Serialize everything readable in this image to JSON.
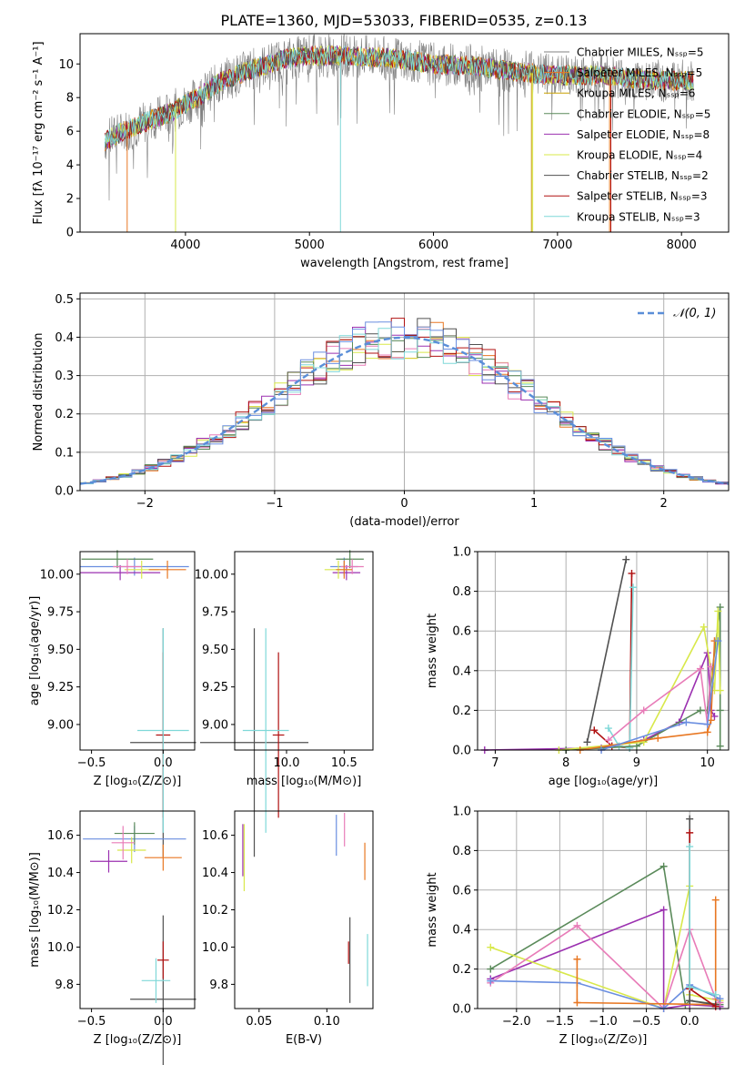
{
  "figure_title": "PLATE=1360, MJD=53033, FIBERID=0535, z=0.13",
  "colors": {
    "Chabrier MILES": "#808080",
    "Salpeter MILES": "#e87722",
    "Kroupa MILES": "#c8a000",
    "Chabrier ELODIE": "#5a8a5a",
    "Salpeter ELODIE": "#9b30b0",
    "Kroupa ELODIE": "#d8e84a",
    "Chabrier STELIB": "#505050",
    "Salpeter STELIB": "#b01010",
    "Kroupa STELIB": "#7fd8d8",
    "pink": "#e87cb8",
    "blue": "#6a8ee0",
    "normal_curve": "#5a8ed8",
    "grid": "#b0b0b0"
  },
  "chart_data": [
    {
      "id": "spectrum",
      "type": "line",
      "title": "PLATE=1360, MJD=53033, FIBERID=0535, z=0.13",
      "xlabel": "wavelength [Angstrom, rest frame]",
      "ylabel": "Flux [fλ 10⁻¹⁷ erg cm⁻² s⁻¹ A⁻¹]",
      "xlim": [
        3150,
        8380
      ],
      "ylim": [
        0,
        11.8
      ],
      "xticks": [
        "4000",
        "5000",
        "6000",
        "7000",
        "8000"
      ],
      "yticks": [
        "0",
        "2",
        "4",
        "6",
        "8",
        "10"
      ],
      "grid": false,
      "legend": "right",
      "series": [
        {
          "name": "Chabrier MILES, Nₛₛₚ=5"
        },
        {
          "name": "Salpeter MILES, Nₛₛₚ=5"
        },
        {
          "name": "Kroupa MILES, Nₛₛₚ=6"
        },
        {
          "name": "Chabrier ELODIE, Nₛₛₚ=5"
        },
        {
          "name": "Salpeter ELODIE, Nₛₛₚ=8"
        },
        {
          "name": "Kroupa ELODIE, Nₛₛₚ=4"
        },
        {
          "name": "Chabrier STELIB, Nₛₛₚ=2"
        },
        {
          "name": "Salpeter STELIB, Nₛₛₚ=3"
        },
        {
          "name": "Kroupa STELIB, Nₛₛₚ=3"
        }
      ],
      "continuum": {
        "x": [
          3350,
          3500,
          3700,
          3900,
          4100,
          4300,
          4500,
          4800,
          5000,
          5300,
          5600,
          6000,
          6300,
          6600,
          7000,
          7400,
          7800,
          8100
        ],
        "y": [
          5.4,
          6.0,
          6.6,
          7.2,
          8.0,
          9.0,
          9.6,
          10.3,
          10.5,
          10.5,
          10.4,
          10.0,
          9.9,
          9.6,
          9.3,
          9.3,
          9.0,
          9.0
        ]
      }
    },
    {
      "id": "residuals",
      "type": "histogram",
      "xlabel": "(data-model)/error",
      "ylabel": "Normed distribution",
      "xlim": [
        -2.5,
        2.5
      ],
      "ylim": [
        0,
        0.515
      ],
      "xticks": [
        "−2",
        "−1",
        "0",
        "1",
        "2"
      ],
      "yticks": [
        "0.0",
        "0.1",
        "0.2",
        "0.3",
        "0.4",
        "0.5"
      ],
      "grid": true,
      "legend": "top-right",
      "curve_label": "𝒩(0, 1)"
    },
    {
      "id": "age-vs-Z",
      "type": "scatter",
      "xlabel": "Z [log₁₀(Z/Z⊙)]",
      "ylabel": "age  [log₁₀(age/yr)]",
      "xlim": [
        -0.58,
        0.22
      ],
      "ylim": [
        8.83,
        10.15
      ],
      "xticks": [
        "−0.5",
        "0.0"
      ],
      "yticks": [
        "9.00",
        "9.25",
        "9.50",
        "9.75",
        "10.00"
      ],
      "points": [
        {
          "x": -0.2,
          "y": 10.05,
          "xerr": 0.38,
          "yerr": 0.06,
          "color": "blue"
        },
        {
          "x": -0.32,
          "y": 10.1,
          "xerr": 0.25,
          "yerr": 0.06,
          "color": "Chabrier ELODIE"
        },
        {
          "x": -0.3,
          "y": 10.01,
          "xerr": 0.28,
          "yerr": 0.05,
          "color": "Salpeter ELODIE"
        },
        {
          "x": -0.15,
          "y": 10.03,
          "xerr": 0.12,
          "yerr": 0.06,
          "color": "Kroupa ELODIE"
        },
        {
          "x": -0.25,
          "y": 10.05,
          "xerr": 0.1,
          "yerr": 0.05,
          "color": "pink"
        },
        {
          "x": 0.03,
          "y": 10.03,
          "xerr": 0.13,
          "yerr": 0.06,
          "color": "Salpeter MILES"
        },
        {
          "x": 0.0,
          "y": 8.88,
          "xerr": 0.23,
          "yerr": 0.76,
          "color": "Chabrier STELIB"
        },
        {
          "x": 0.0,
          "y": 8.93,
          "xerr": 0.05,
          "yerr": 0.55,
          "color": "Salpeter STELIB"
        },
        {
          "x": 0.0,
          "y": 8.96,
          "xerr": 0.18,
          "yerr": 0.68,
          "color": "Kroupa STELIB"
        }
      ]
    },
    {
      "id": "age-vs-mass",
      "type": "scatter",
      "xlabel": "mass [log₁₀(M/M⊙)]",
      "ylabel": "",
      "xlim": [
        9.55,
        10.75
      ],
      "ylim": [
        8.83,
        10.15
      ],
      "xticks": [
        "10.0",
        "10.5"
      ],
      "yticks": [
        "9.00",
        "9.25",
        "9.50",
        "9.75",
        "10.00"
      ],
      "points": [
        {
          "x": 10.5,
          "y": 10.05,
          "xerr": 0.12,
          "yerr": 0.06,
          "color": "blue"
        },
        {
          "x": 10.55,
          "y": 10.1,
          "xerr": 0.12,
          "yerr": 0.06,
          "color": "Chabrier ELODIE"
        },
        {
          "x": 10.52,
          "y": 10.01,
          "xerr": 0.12,
          "yerr": 0.05,
          "color": "Salpeter ELODIE"
        },
        {
          "x": 10.45,
          "y": 10.03,
          "xerr": 0.12,
          "yerr": 0.06,
          "color": "Kroupa ELODIE"
        },
        {
          "x": 10.57,
          "y": 10.05,
          "xerr": 0.1,
          "yerr": 0.05,
          "color": "pink"
        },
        {
          "x": 10.5,
          "y": 10.03,
          "xerr": 0.07,
          "yerr": 0.06,
          "color": "Salpeter MILES"
        },
        {
          "x": 9.72,
          "y": 8.88,
          "xerr": 0.47,
          "yerr": 0.76,
          "color": "Chabrier STELIB"
        },
        {
          "x": 9.93,
          "y": 8.93,
          "xerr": 0.05,
          "yerr": 0.55,
          "color": "Salpeter STELIB"
        },
        {
          "x": 9.82,
          "y": 8.96,
          "xerr": 0.2,
          "yerr": 0.68,
          "color": "Kroupa STELIB"
        }
      ]
    },
    {
      "id": "weight-vs-age",
      "type": "line",
      "xlabel": "age  [log₁₀(age/yr)]",
      "ylabel": "mass weight",
      "xlim": [
        6.75,
        10.3
      ],
      "ylim": [
        0,
        1.0
      ],
      "xticks": [
        "7",
        "8",
        "9",
        "10"
      ],
      "yticks": [
        "0.0",
        "0.2",
        "0.4",
        "0.6",
        "0.8",
        "1.0"
      ],
      "grid": true,
      "series": [
        {
          "color": "Chabrier STELIB",
          "x": [
            8.3,
            8.85
          ],
          "y": [
            0.04,
            0.96
          ]
        },
        {
          "color": "Salpeter STELIB",
          "x": [
            8.4,
            8.65,
            8.9,
            8.93
          ],
          "y": [
            0.1,
            0.02,
            0.01,
            0.89
          ]
        },
        {
          "color": "Kroupa STELIB",
          "x": [
            8.6,
            8.75,
            8.9,
            8.95
          ],
          "y": [
            0.11,
            0.02,
            0.01,
            0.82
          ]
        },
        {
          "color": "Salpeter ELODIE",
          "x": [
            6.85,
            8.5,
            9.1,
            9.6,
            10.0,
            10.05,
            10.1
          ],
          "y": [
            0.0,
            0.01,
            0.05,
            0.14,
            0.49,
            0.2,
            0.17
          ]
        },
        {
          "color": "Chabrier ELODIE",
          "x": [
            8.0,
            9.0,
            9.9,
            10.0,
            10.18,
            10.18,
            10.18
          ],
          "y": [
            0.0,
            0.02,
            0.2,
            0.2,
            0.72,
            0.2,
            0.02
          ]
        },
        {
          "color": "Kroupa ELODIE",
          "x": [
            7.9,
            9.1,
            9.95,
            10.1,
            10.15,
            10.18
          ],
          "y": [
            0.0,
            0.04,
            0.62,
            0.3,
            0.7,
            0.3
          ]
        },
        {
          "color": "pink",
          "x": [
            8.6,
            9.1,
            9.9,
            10.0,
            10.05
          ],
          "y": [
            0.05,
            0.2,
            0.41,
            0.13,
            0.42
          ]
        },
        {
          "color": "Salpeter MILES",
          "x": [
            8.2,
            9.3,
            10.0,
            10.05,
            10.1
          ],
          "y": [
            0.0,
            0.06,
            0.09,
            0.15,
            0.55
          ]
        },
        {
          "color": "blue",
          "x": [
            8.5,
            9.7,
            10.0,
            10.15
          ],
          "y": [
            0.0,
            0.14,
            0.13,
            0.55
          ]
        }
      ]
    },
    {
      "id": "mass-vs-Z",
      "type": "scatter",
      "xlabel": "Z [log₁₀(Z/Z⊙)]",
      "ylabel": "mass [log₁₀(M/M⊙)]",
      "xlim": [
        -0.58,
        0.22
      ],
      "ylim": [
        9.67,
        10.73
      ],
      "xticks": [
        "−0.5",
        "0.0"
      ],
      "yticks": [
        "9.8",
        "10.0",
        "10.2",
        "10.4",
        "10.6"
      ],
      "points": [
        {
          "x": -0.2,
          "y": 10.58,
          "xerr": 0.36,
          "yerr": 0.07,
          "color": "blue"
        },
        {
          "x": -0.2,
          "y": 10.61,
          "xerr": 0.14,
          "yerr": 0.06,
          "color": "Chabrier ELODIE"
        },
        {
          "x": -0.38,
          "y": 10.46,
          "xerr": 0.13,
          "yerr": 0.06,
          "color": "Salpeter ELODIE"
        },
        {
          "x": -0.22,
          "y": 10.52,
          "xerr": 0.1,
          "yerr": 0.07,
          "color": "Kroupa ELODIE"
        },
        {
          "x": -0.28,
          "y": 10.56,
          "xerr": 0.08,
          "yerr": 0.09,
          "color": "pink"
        },
        {
          "x": 0.0,
          "y": 10.48,
          "xerr": 0.13,
          "yerr": 0.07,
          "color": "Salpeter MILES"
        },
        {
          "x": 0.0,
          "y": 9.72,
          "xerr": 0.23,
          "yerr": 0.45,
          "color": "Chabrier STELIB"
        },
        {
          "x": 0.0,
          "y": 9.93,
          "xerr": 0.04,
          "yerr": 0.1,
          "color": "Salpeter STELIB"
        },
        {
          "x": -0.05,
          "y": 9.82,
          "xerr": 0.1,
          "yerr": 0.12,
          "color": "Kroupa STELIB"
        }
      ]
    },
    {
      "id": "mass-vs-EBV",
      "type": "scatter",
      "xlabel": "E(B-V)",
      "ylabel": "",
      "xlim": [
        0.032,
        0.134
      ],
      "ylim": [
        9.67,
        10.73
      ],
      "xticks": [
        "0.05",
        "0.10"
      ],
      "yticks": [
        "9.8",
        "10.0",
        "10.2",
        "10.4",
        "10.6"
      ],
      "points": [
        {
          "x": 0.038,
          "y": 10.52,
          "yerr": 0.14,
          "color": "Salpeter ELODIE"
        },
        {
          "x": 0.039,
          "y": 10.48,
          "yerr": 0.18,
          "color": "Kroupa ELODIE"
        },
        {
          "x": 0.107,
          "y": 10.6,
          "yerr": 0.11,
          "color": "blue"
        },
        {
          "x": 0.113,
          "y": 10.63,
          "yerr": 0.09,
          "color": "pink"
        },
        {
          "x": 0.128,
          "y": 10.46,
          "yerr": 0.1,
          "color": "Salpeter MILES"
        },
        {
          "x": 0.117,
          "y": 9.93,
          "yerr": 0.23,
          "color": "Chabrier STELIB"
        },
        {
          "x": 0.116,
          "y": 9.97,
          "yerr": 0.06,
          "color": "Salpeter STELIB"
        },
        {
          "x": 0.13,
          "y": 9.93,
          "yerr": 0.14,
          "color": "Kroupa STELIB"
        }
      ]
    },
    {
      "id": "weight-vs-Z",
      "type": "line",
      "xlabel": "Z [log₁₀(Z/Z⊙)]",
      "ylabel": "mass weight",
      "xlim": [
        -2.45,
        0.45
      ],
      "ylim": [
        0,
        1.0
      ],
      "xticks": [
        "−2.0",
        "−1.5",
        "−1.0",
        "−0.5",
        "0.0"
      ],
      "yticks": [
        "0.0",
        "0.2",
        "0.4",
        "0.6",
        "0.8",
        "1.0"
      ],
      "grid": true,
      "series": [
        {
          "color": "Chabrier ELODIE",
          "x": [
            -2.3,
            -0.3,
            -0.05,
            0.0,
            0.35
          ],
          "y": [
            0.2,
            0.72,
            0.02,
            0.04,
            0.02
          ]
        },
        {
          "color": "Salpeter ELODIE",
          "x": [
            -2.3,
            -0.3,
            -0.3,
            0.0,
            0.35
          ],
          "y": [
            0.15,
            0.5,
            0.0,
            0.02,
            0.01
          ]
        },
        {
          "color": "Kroupa ELODIE",
          "x": [
            -2.3,
            -0.3,
            0.0,
            0.0,
            0.35
          ],
          "y": [
            0.31,
            0.0,
            0.62,
            0.07,
            0.04
          ]
        },
        {
          "color": "pink",
          "x": [
            -2.3,
            -1.3,
            -0.3,
            0.0,
            0.3,
            0.35
          ],
          "y": [
            0.13,
            0.42,
            0.0,
            0.4,
            0.05,
            0.03
          ]
        },
        {
          "color": "blue",
          "x": [
            -2.3,
            -1.3,
            -0.3,
            0.0,
            0.35
          ],
          "y": [
            0.14,
            0.13,
            0.0,
            0.12,
            0.05
          ]
        },
        {
          "color": "Salpeter MILES",
          "x": [
            -1.3,
            -1.3,
            0.3,
            0.3
          ],
          "y": [
            0.25,
            0.03,
            0.02,
            0.55
          ]
        },
        {
          "color": "Chabrier STELIB",
          "x": [
            0.0,
            0.0,
            0.3
          ],
          "y": [
            0.96,
            0.04,
            0.02
          ]
        },
        {
          "color": "Salpeter STELIB",
          "x": [
            0.0,
            0.0,
            0.3
          ],
          "y": [
            0.89,
            0.1,
            0.01
          ]
        },
        {
          "color": "Kroupa STELIB",
          "x": [
            0.0,
            0.0,
            0.3
          ],
          "y": [
            0.82,
            0.11,
            0.07
          ]
        }
      ]
    }
  ]
}
